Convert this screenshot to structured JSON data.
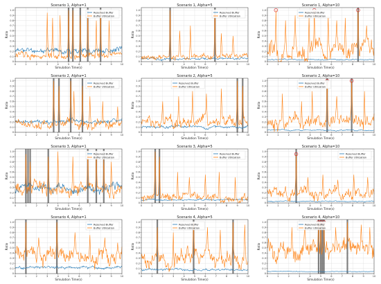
{
  "colors": {
    "reserved": "#1f77b4",
    "utilization": "#ff7f0e",
    "event_band": "#555555",
    "peak_marker": "#d62728"
  },
  "chart_data": [
    {
      "type": "line",
      "title": "Scenario 1, Alpha=1",
      "xlabel": "Simulation Time(s)",
      "ylabel": "Ratio",
      "xlim": [
        0,
        10
      ],
      "ylim": [
        0,
        1.05
      ],
      "xticks": [
        0,
        1,
        2,
        3,
        4,
        5,
        6,
        7,
        8,
        9,
        10
      ],
      "yticks": [
        0,
        0.1,
        0.2,
        0.3,
        0.4,
        0.5,
        0.6,
        0.7,
        0.8,
        0.9,
        1.0
      ],
      "grid": true,
      "legend": "top-right",
      "series": [
        {
          "name": "Reserved Buffer",
          "color": "#1f77b4",
          "seed": 11,
          "base": 0.22,
          "amp": 0.1,
          "spikes": []
        },
        {
          "name": "Buffer Utilization",
          "color": "#ff7f0e",
          "seed": 12,
          "base": 0.12,
          "amp": 0.12,
          "spikes": [
            [
              3.0,
              0.95
            ],
            [
              3.5,
              0.85
            ],
            [
              4.2,
              0.9
            ],
            [
              5.0,
              1.0
            ],
            [
              5.4,
              1.0
            ],
            [
              6.1,
              0.9
            ],
            [
              6.8,
              0.95
            ],
            [
              7.6,
              0.8
            ],
            [
              8.0,
              1.0
            ],
            [
              8.8,
              0.8
            ]
          ]
        }
      ],
      "event_bands": [
        5.0,
        5.4,
        6.1,
        6.8,
        8.0
      ],
      "peak_markers": []
    },
    {
      "type": "line",
      "title": "Scenario 1, Alpha=5",
      "xlabel": "Simulation Time(s)",
      "ylabel": "Ratio",
      "xlim": [
        0,
        10
      ],
      "ylim": [
        0,
        1.05
      ],
      "xticks": [
        0,
        1,
        2,
        3,
        4,
        5,
        6,
        7,
        8,
        9,
        10
      ],
      "yticks": [
        0,
        0.1,
        0.2,
        0.3,
        0.4,
        0.5,
        0.6,
        0.7,
        0.8,
        0.9,
        1.0
      ],
      "grid": true,
      "legend": "top-right",
      "series": [
        {
          "name": "Reserved Buffer",
          "color": "#1f77b4",
          "seed": 21,
          "base": 0.06,
          "amp": 0.04,
          "spikes": []
        },
        {
          "name": "Buffer Utilization",
          "color": "#ff7f0e",
          "seed": 22,
          "base": 0.1,
          "amp": 0.1,
          "spikes": [
            [
              2.7,
              1.0
            ],
            [
              3.6,
              0.6
            ],
            [
              4.6,
              0.7
            ],
            [
              6.9,
              1.0
            ],
            [
              7.5,
              0.55
            ],
            [
              8.6,
              0.5
            ]
          ]
        }
      ],
      "event_bands": [
        2.7,
        6.9
      ],
      "peak_markers": []
    },
    {
      "type": "line",
      "title": "Scenario 1, Alpha=10",
      "xlabel": "Simulation Time(s)",
      "ylabel": "Ratio",
      "xlim": [
        0,
        10
      ],
      "ylim": [
        0,
        1.05
      ],
      "xticks": [
        0,
        1,
        2,
        3,
        4,
        5,
        6,
        7,
        8,
        9,
        10
      ],
      "yticks": [
        0,
        0.1,
        0.2,
        0.3,
        0.4,
        0.5,
        0.6,
        0.7,
        0.8,
        0.9,
        1.0
      ],
      "grid": true,
      "legend": "top-left",
      "series": [
        {
          "name": "Reserved Buffer",
          "color": "#1f77b4",
          "seed": 31,
          "base": 0.04,
          "amp": 0.02,
          "spikes": []
        },
        {
          "name": "Buffer Utilization",
          "color": "#ff7f0e",
          "seed": 32,
          "base": 0.25,
          "amp": 0.35,
          "spikes": [
            [
              0.8,
              1.0
            ],
            [
              1.7,
              0.8
            ],
            [
              2.6,
              0.9
            ],
            [
              3.9,
              0.85
            ],
            [
              4.4,
              1.0
            ],
            [
              5.7,
              0.9
            ],
            [
              6.5,
              0.8
            ],
            [
              7.3,
              0.85
            ],
            [
              8.5,
              1.0
            ],
            [
              9.3,
              0.7
            ]
          ]
        }
      ],
      "event_bands": [
        8.5
      ],
      "peak_markers": [
        [
          0.8,
          1.0
        ],
        [
          4.4,
          1.0
        ],
        [
          8.5,
          1.0
        ]
      ]
    },
    {
      "type": "line",
      "title": "Scenario 2, Alpha=1",
      "xlabel": "Simulation Time(s)",
      "ylabel": "Ratio",
      "xlim": [
        0,
        10
      ],
      "ylim": [
        0,
        1.05
      ],
      "xticks": [
        0,
        1,
        2,
        3,
        4,
        5,
        6,
        7,
        8,
        9,
        10
      ],
      "yticks": [
        0,
        0.1,
        0.2,
        0.3,
        0.4,
        0.5,
        0.6,
        0.7,
        0.8,
        0.9,
        1.0
      ],
      "grid": true,
      "legend": "top-right",
      "series": [
        {
          "name": "Reserved Buffer",
          "color": "#1f77b4",
          "seed": 41,
          "base": 0.2,
          "amp": 0.08,
          "spikes": []
        },
        {
          "name": "Buffer Utilization",
          "color": "#ff7f0e",
          "seed": 42,
          "base": 0.15,
          "amp": 0.18,
          "spikes": [
            [
              3.6,
              1.0
            ],
            [
              4.1,
              0.9
            ],
            [
              5.2,
              1.0
            ],
            [
              5.5,
              0.8
            ],
            [
              6.3,
              0.9
            ],
            [
              7.0,
              0.7
            ],
            [
              8.2,
              0.6
            ],
            [
              9.6,
              0.5
            ]
          ]
        }
      ],
      "event_bands": [
        3.6,
        4.1,
        5.2,
        6.3
      ],
      "peak_markers": []
    },
    {
      "type": "line",
      "title": "Scenario 2, Alpha=5",
      "xlabel": "Simulation Time(s)",
      "ylabel": "Ratio",
      "xlim": [
        0,
        10
      ],
      "ylim": [
        0,
        1.05
      ],
      "xticks": [
        0,
        1,
        2,
        3,
        4,
        5,
        6,
        7,
        8,
        9,
        10
      ],
      "yticks": [
        0,
        0.1,
        0.2,
        0.3,
        0.4,
        0.5,
        0.6,
        0.7,
        0.8,
        0.9,
        1.0
      ],
      "grid": true,
      "legend": "top-left",
      "series": [
        {
          "name": "Reserved Buffer",
          "color": "#1f77b4",
          "seed": 51,
          "base": 0.1,
          "amp": 0.05,
          "spikes": []
        },
        {
          "name": "Buffer Utilization",
          "color": "#ff7f0e",
          "seed": 52,
          "base": 0.2,
          "amp": 0.2,
          "spikes": [
            [
              2.0,
              0.6
            ],
            [
              3.5,
              0.7
            ],
            [
              4.8,
              0.8
            ],
            [
              6.1,
              0.75
            ],
            [
              7.5,
              0.85
            ],
            [
              9.0,
              1.0
            ],
            [
              9.5,
              0.9
            ]
          ]
        }
      ],
      "event_bands": [
        9.0,
        9.5
      ],
      "peak_markers": []
    },
    {
      "type": "line",
      "title": "Scenario 2, Alpha=10",
      "xlabel": "Simulation Time(s)",
      "ylabel": "Ratio",
      "xlim": [
        0,
        10
      ],
      "ylim": [
        0,
        1.05
      ],
      "xticks": [
        0,
        1,
        2,
        3,
        4,
        5,
        6,
        7,
        8,
        9,
        10
      ],
      "yticks": [
        0,
        0.1,
        0.2,
        0.3,
        0.4,
        0.5,
        0.6,
        0.7,
        0.8,
        0.9,
        1.0
      ],
      "grid": true,
      "legend": "top-left",
      "series": [
        {
          "name": "Reserved Buffer",
          "color": "#1f77b4",
          "seed": 61,
          "base": 0.04,
          "amp": 0.02,
          "spikes": []
        },
        {
          "name": "Buffer Utilization",
          "color": "#ff7f0e",
          "seed": 62,
          "base": 0.2,
          "amp": 0.25,
          "spikes": [
            [
              1.4,
              0.75
            ],
            [
              3.2,
              0.6
            ],
            [
              4.2,
              0.8
            ],
            [
              5.6,
              1.0
            ],
            [
              6.5,
              0.7
            ],
            [
              7.9,
              1.0
            ],
            [
              9.1,
              0.8
            ]
          ]
        }
      ],
      "event_bands": [
        5.6,
        7.9
      ],
      "peak_markers": [
        [
          5.6,
          1.0
        ],
        [
          7.9,
          1.0
        ]
      ]
    },
    {
      "type": "line",
      "title": "Scenario 3, Alpha=1",
      "xlabel": "Simulation Time(s)",
      "ylabel": "Ratio",
      "xlim": [
        0,
        10
      ],
      "ylim": [
        0,
        1.05
      ],
      "xticks": [
        0,
        1,
        2,
        3,
        4,
        5,
        6,
        7,
        8,
        9,
        10
      ],
      "yticks": [
        0,
        0.1,
        0.2,
        0.3,
        0.4,
        0.5,
        0.6,
        0.7,
        0.8,
        0.9,
        1.0
      ],
      "grid": true,
      "legend": "top-right",
      "series": [
        {
          "name": "Reserved Buffer",
          "color": "#1f77b4",
          "seed": 71,
          "base": 0.3,
          "amp": 0.15,
          "spikes": []
        },
        {
          "name": "Buffer Utilization",
          "color": "#ff7f0e",
          "seed": 72,
          "base": 0.25,
          "amp": 0.25,
          "spikes": [
            [
              1.0,
              0.95
            ],
            [
              1.4,
              0.8
            ],
            [
              3.1,
              0.9
            ],
            [
              4.0,
              1.0
            ],
            [
              5.4,
              0.9
            ],
            [
              6.8,
              1.0
            ],
            [
              7.6,
              0.95
            ],
            [
              8.3,
              0.85
            ],
            [
              9.0,
              0.8
            ]
          ]
        }
      ],
      "event_bands": [
        1.0,
        1.2,
        1.4,
        3.1,
        6.8,
        7.6,
        8.3
      ],
      "peak_markers": []
    },
    {
      "type": "line",
      "title": "Scenario 3, Alpha=5",
      "xlabel": "Simulation Time(s)",
      "ylabel": "Ratio",
      "xlim": [
        0,
        10
      ],
      "ylim": [
        0,
        1.05
      ],
      "xticks": [
        0,
        1,
        2,
        3,
        4,
        5,
        6,
        7,
        8,
        9,
        10
      ],
      "yticks": [
        0,
        0.1,
        0.2,
        0.3,
        0.4,
        0.5,
        0.6,
        0.7,
        0.8,
        0.9,
        1.0
      ],
      "grid": true,
      "legend": "top-right",
      "series": [
        {
          "name": "Reserved Buffer",
          "color": "#1f77b4",
          "seed": 81,
          "base": 0.06,
          "amp": 0.03,
          "spikes": []
        },
        {
          "name": "Buffer Utilization",
          "color": "#ff7f0e",
          "seed": 82,
          "base": 0.12,
          "amp": 0.14,
          "spikes": [
            [
              1.3,
              1.0
            ],
            [
              1.7,
              0.9
            ],
            [
              3.4,
              0.6
            ],
            [
              4.5,
              0.5
            ],
            [
              6.0,
              0.55
            ],
            [
              7.3,
              0.6
            ],
            [
              8.8,
              0.5
            ]
          ]
        }
      ],
      "event_bands": [
        1.3,
        1.7
      ],
      "peak_markers": []
    },
    {
      "type": "line",
      "title": "Scenario 3, Alpha=10",
      "xlabel": "Simulation Time(s)",
      "ylabel": "Ratio",
      "xlim": [
        0,
        10
      ],
      "ylim": [
        0,
        1.05
      ],
      "xticks": [
        0,
        1,
        2,
        3,
        4,
        5,
        6,
        7,
        8,
        9,
        10
      ],
      "yticks": [
        0,
        0.1,
        0.2,
        0.3,
        0.4,
        0.5,
        0.6,
        0.7,
        0.8,
        0.9,
        1.0
      ],
      "grid": true,
      "legend": "top-right",
      "series": [
        {
          "name": "Reserved Buffer",
          "color": "#1f77b4",
          "seed": 91,
          "base": 0.03,
          "amp": 0.02,
          "spikes": []
        },
        {
          "name": "Buffer Utilization",
          "color": "#ff7f0e",
          "seed": 92,
          "base": 0.18,
          "amp": 0.2,
          "spikes": [
            [
              2.7,
              0.95
            ],
            [
              3.8,
              0.5
            ],
            [
              5.2,
              0.55
            ],
            [
              6.6,
              0.45
            ],
            [
              8.1,
              0.55
            ],
            [
              9.4,
              0.5
            ]
          ]
        }
      ],
      "event_bands": [
        2.7
      ],
      "peak_markers": [
        [
          2.7,
          0.95
        ]
      ]
    },
    {
      "type": "line",
      "title": "Scenario 4, Alpha=1",
      "xlabel": "Simulation Time(s)",
      "ylabel": "Ratio",
      "xlim": [
        0,
        10
      ],
      "ylim": [
        0,
        1.05
      ],
      "xticks": [
        0,
        1,
        2,
        3,
        4,
        5,
        6,
        7,
        8,
        9,
        10
      ],
      "yticks": [
        0,
        0.1,
        0.2,
        0.3,
        0.4,
        0.5,
        0.6,
        0.7,
        0.8,
        0.9,
        1.0
      ],
      "grid": true,
      "legend": "top-right",
      "series": [
        {
          "name": "Reserved Buffer",
          "color": "#1f77b4",
          "seed": 101,
          "base": 0.12,
          "amp": 0.05,
          "spikes": []
        },
        {
          "name": "Buffer Utilization",
          "color": "#ff7f0e",
          "seed": 102,
          "base": 0.35,
          "amp": 0.3,
          "spikes": [
            [
              1.0,
              1.0
            ],
            [
              2.2,
              0.7
            ],
            [
              3.9,
              1.0
            ],
            [
              5.6,
              0.8
            ],
            [
              7.0,
              0.75
            ],
            [
              8.4,
              0.7
            ],
            [
              9.6,
              0.6
            ]
          ]
        }
      ],
      "event_bands": [
        1.0,
        3.9
      ],
      "peak_markers": []
    },
    {
      "type": "line",
      "title": "Scenario 4, Alpha=5",
      "xlabel": "Simulation Time(s)",
      "ylabel": "Ratio",
      "xlim": [
        0,
        10
      ],
      "ylim": [
        0,
        1.05
      ],
      "xticks": [
        0,
        1,
        2,
        3,
        4,
        5,
        6,
        7,
        8,
        9,
        10
      ],
      "yticks": [
        0,
        0.1,
        0.2,
        0.3,
        0.4,
        0.5,
        0.6,
        0.7,
        0.8,
        0.9,
        1.0
      ],
      "grid": true,
      "legend": "top-left",
      "series": [
        {
          "name": "Reserved Buffer",
          "color": "#1f77b4",
          "seed": 111,
          "base": 0.07,
          "amp": 0.04,
          "spikes": []
        },
        {
          "name": "Buffer Utilization",
          "color": "#ff7f0e",
          "seed": 112,
          "base": 0.3,
          "amp": 0.3,
          "spikes": [
            [
              1.5,
              0.9
            ],
            [
              3.0,
              0.8
            ],
            [
              4.9,
              1.0
            ],
            [
              6.2,
              0.9
            ],
            [
              7.4,
              0.85
            ],
            [
              8.6,
              1.0
            ],
            [
              9.7,
              0.95
            ]
          ]
        }
      ],
      "event_bands": [
        1.5,
        4.9,
        8.6
      ],
      "peak_markers": []
    },
    {
      "type": "line",
      "title": "Scenario 4, Alpha=10",
      "xlabel": "Simulation Time(s)",
      "ylabel": "Ratio",
      "xlim": [
        0,
        10
      ],
      "ylim": [
        0,
        1.05
      ],
      "xticks": [
        0,
        1,
        2,
        3,
        4,
        5,
        6,
        7,
        8,
        9,
        10
      ],
      "yticks": [
        0,
        0.1,
        0.2,
        0.3,
        0.4,
        0.5,
        0.6,
        0.7,
        0.8,
        0.9,
        1.0
      ],
      "grid": true,
      "legend": "top-left",
      "series": [
        {
          "name": "Reserved Buffer",
          "color": "#1f77b4",
          "seed": 121,
          "base": 0.04,
          "amp": 0.01,
          "spikes": []
        },
        {
          "name": "Buffer Utilization",
          "color": "#ff7f0e",
          "seed": 122,
          "base": 0.45,
          "amp": 0.35,
          "spikes": [
            [
              2.3,
              0.9
            ],
            [
              3.5,
              0.95
            ],
            [
              4.8,
              1.0
            ],
            [
              5.0,
              1.0
            ],
            [
              5.3,
              1.0
            ],
            [
              6.4,
              0.9
            ],
            [
              7.5,
              1.0
            ],
            [
              8.8,
              0.95
            ],
            [
              9.6,
              0.9
            ]
          ]
        }
      ],
      "event_bands": [
        4.8,
        5.0,
        5.15,
        5.3,
        7.5
      ],
      "peak_markers": [
        [
          4.8,
          1.0
        ],
        [
          5.0,
          1.0
        ],
        [
          5.3,
          1.0
        ]
      ]
    }
  ]
}
